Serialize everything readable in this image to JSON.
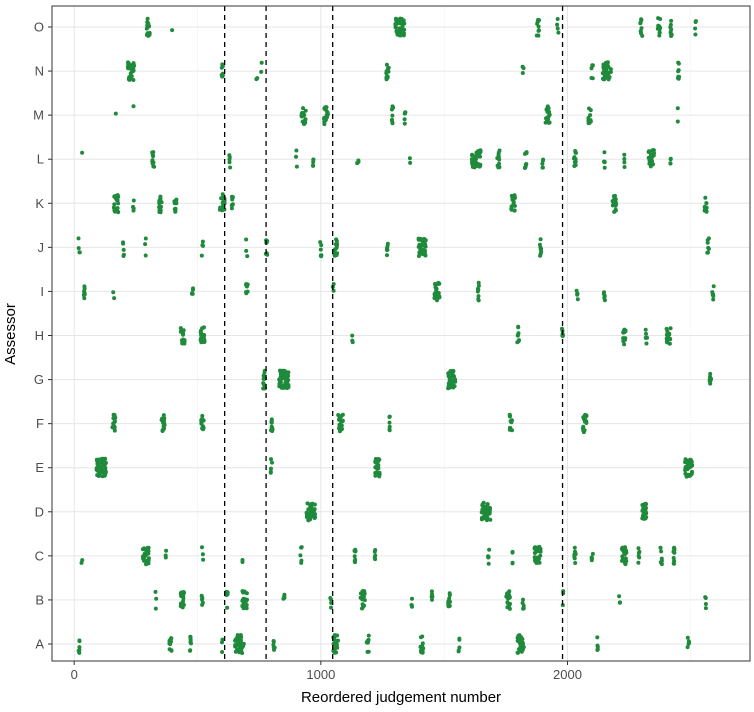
{
  "chart_data": {
    "type": "scatter",
    "xlabel": "Reordered judgement number",
    "ylabel": "Assessor",
    "xlim": [
      -90,
      2740
    ],
    "x_ticks": [
      0,
      1000,
      2000
    ],
    "x_tick_labels": [
      "0",
      "1000",
      "2000"
    ],
    "categories": [
      "A",
      "B",
      "C",
      "D",
      "E",
      "F",
      "G",
      "H",
      "I",
      "J",
      "K",
      "L",
      "M",
      "N",
      "O"
    ],
    "vlines": [
      610,
      778,
      1048,
      1980
    ],
    "grid": true,
    "legend": "none",
    "point_color": "#1f8a3b",
    "clusters": {
      "A": [
        [
          20,
          6
        ],
        [
          390,
          12
        ],
        [
          470,
          8
        ],
        [
          600,
          3
        ],
        [
          670,
          40
        ],
        [
          810,
          6
        ],
        [
          1060,
          25
        ],
        [
          1190,
          10
        ],
        [
          1410,
          14
        ],
        [
          1560,
          5
        ],
        [
          1810,
          30
        ],
        [
          2120,
          5
        ],
        [
          2490,
          6
        ]
      ],
      "B": [
        [
          330,
          3
        ],
        [
          440,
          18
        ],
        [
          520,
          6
        ],
        [
          620,
          5
        ],
        [
          690,
          25
        ],
        [
          850,
          4
        ],
        [
          1040,
          4
        ],
        [
          1170,
          20
        ],
        [
          1370,
          4
        ],
        [
          1450,
          5
        ],
        [
          1520,
          10
        ],
        [
          1760,
          18
        ],
        [
          1820,
          5
        ],
        [
          1980,
          3
        ],
        [
          2210,
          3
        ],
        [
          2560,
          4
        ]
      ],
      "C": [
        [
          30,
          2
        ],
        [
          290,
          30
        ],
        [
          370,
          3
        ],
        [
          520,
          3
        ],
        [
          680,
          2
        ],
        [
          920,
          5
        ],
        [
          1140,
          8
        ],
        [
          1220,
          5
        ],
        [
          1680,
          5
        ],
        [
          1780,
          4
        ],
        [
          1880,
          30
        ],
        [
          2030,
          8
        ],
        [
          2100,
          5
        ],
        [
          2230,
          22
        ],
        [
          2290,
          6
        ],
        [
          2380,
          6
        ],
        [
          2430,
          10
        ]
      ],
      "D": [
        [
          960,
          40
        ],
        [
          1670,
          40
        ],
        [
          2310,
          22
        ]
      ],
      "E": [
        [
          110,
          55
        ],
        [
          800,
          5
        ],
        [
          1230,
          22
        ],
        [
          2490,
          35
        ]
      ],
      "F": [
        [
          160,
          15
        ],
        [
          360,
          15
        ],
        [
          520,
          12
        ],
        [
          800,
          10
        ],
        [
          1080,
          22
        ],
        [
          1280,
          6
        ],
        [
          1770,
          12
        ],
        [
          2070,
          18
        ]
      ],
      "G": [
        [
          770,
          12
        ],
        [
          850,
          45
        ],
        [
          1530,
          35
        ],
        [
          2580,
          8
        ]
      ],
      "H": [
        [
          440,
          18
        ],
        [
          520,
          22
        ],
        [
          1130,
          3
        ],
        [
          1800,
          8
        ],
        [
          1980,
          6
        ],
        [
          2230,
          12
        ],
        [
          2320,
          5
        ],
        [
          2410,
          18
        ]
      ],
      "I": [
        [
          40,
          8
        ],
        [
          160,
          2
        ],
        [
          480,
          6
        ],
        [
          700,
          10
        ],
        [
          1050,
          3
        ],
        [
          1470,
          25
        ],
        [
          1640,
          8
        ],
        [
          2040,
          5
        ],
        [
          2150,
          5
        ],
        [
          2590,
          6
        ]
      ],
      "J": [
        [
          20,
          4
        ],
        [
          200,
          5
        ],
        [
          290,
          3
        ],
        [
          520,
          4
        ],
        [
          700,
          3
        ],
        [
          780,
          8
        ],
        [
          1000,
          6
        ],
        [
          1060,
          15
        ],
        [
          1270,
          6
        ],
        [
          1410,
          35
        ],
        [
          1890,
          8
        ],
        [
          2570,
          8
        ]
      ],
      "K": [
        [
          170,
          20
        ],
        [
          240,
          4
        ],
        [
          350,
          15
        ],
        [
          410,
          10
        ],
        [
          600,
          22
        ],
        [
          640,
          8
        ],
        [
          1780,
          18
        ],
        [
          2190,
          18
        ],
        [
          2560,
          10
        ]
      ],
      "L": [
        [
          30,
          1
        ],
        [
          320,
          10
        ],
        [
          630,
          5
        ],
        [
          900,
          3
        ],
        [
          970,
          5
        ],
        [
          1150,
          3
        ],
        [
          1360,
          2
        ],
        [
          1630,
          40
        ],
        [
          1720,
          10
        ],
        [
          1830,
          10
        ],
        [
          1900,
          5
        ],
        [
          2030,
          10
        ],
        [
          2150,
          5
        ],
        [
          2230,
          4
        ],
        [
          2340,
          25
        ],
        [
          2420,
          4
        ]
      ],
      "M": [
        [
          170,
          1
        ],
        [
          240,
          1
        ],
        [
          930,
          20
        ],
        [
          1020,
          20
        ],
        [
          1290,
          10
        ],
        [
          1340,
          6
        ],
        [
          1920,
          20
        ],
        [
          2090,
          12
        ],
        [
          2450,
          2
        ]
      ],
      "N": [
        [
          230,
          30
        ],
        [
          600,
          8
        ],
        [
          740,
          2
        ],
        [
          760,
          2
        ],
        [
          1270,
          12
        ],
        [
          1820,
          3
        ],
        [
          2160,
          40
        ],
        [
          2100,
          6
        ],
        [
          2450,
          8
        ]
      ],
      "O": [
        [
          300,
          15
        ],
        [
          400,
          1
        ],
        [
          1320,
          45
        ],
        [
          1880,
          12
        ],
        [
          1960,
          4
        ],
        [
          2300,
          10
        ],
        [
          2370,
          12
        ],
        [
          2420,
          8
        ],
        [
          2520,
          4
        ]
      ]
    }
  }
}
